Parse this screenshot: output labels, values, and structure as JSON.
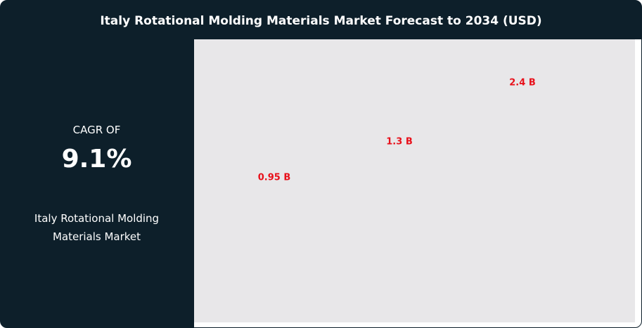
{
  "title": "Italy Rotational Molding Materials Market Forecast to 2034 (USD)",
  "sidebar": {
    "cagr_label": "CAGR OF",
    "cagr_value": "9.1%",
    "market_name": "Italy Rotational Molding Materials Market"
  },
  "colors": {
    "background": "#0d1f2a",
    "plot_background": "#e8e7e9",
    "label": "#e8101a"
  },
  "chart_data": {
    "type": "bar",
    "title": "Italy Rotational Molding Materials Market Forecast to 2034 (USD)",
    "values": [
      0.95,
      1.3,
      2.4
    ],
    "data_labels": [
      "0.95 B",
      "1.3 B",
      "2.4 B"
    ],
    "unit": "B USD",
    "grid": false
  }
}
